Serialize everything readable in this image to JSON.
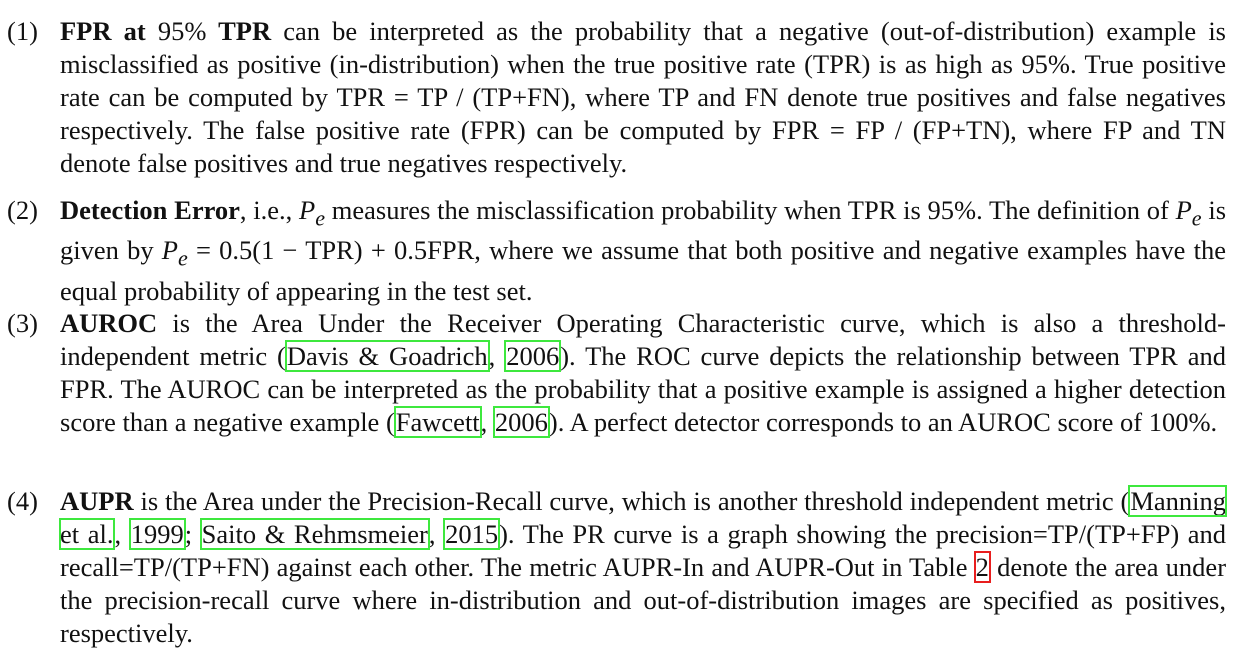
{
  "items": [
    {
      "number": "(1)",
      "title_a": "FPR at",
      "title_num": "95%",
      "title_b": "TPR",
      "body": "can be interpreted as the probability that a negative (out-of-distribution) example is misclassified as positive (in-distribution) when the true positive rate (TPR) is as high as 95%. True positive rate can be computed by TPR = TP / (TP+FN), where TP and FN denote true positives and false negatives respectively. The false positive rate (FPR) can be computed by FPR = FP / (FP+TN), where FP and TN denote false positives and true negatives respectively."
    },
    {
      "number": "(2)",
      "title": "Detection Error",
      "t1": ", i.e.,",
      "pe_p": "P",
      "pe_e": "e",
      "t2": "measures the misclassification probability when TPR is 95%.  The definition of",
      "t3": "is given by",
      "formula": "= 0.5(1 − TPR) + 0.5FPR",
      "t4": ", where we assume that both positive and negative examples have the equal probability of appearing in the test set."
    },
    {
      "number": "(3)",
      "title": "AUROC",
      "t1": "is the Area Under the Receiver Operating Characteristic curve, which is also a threshold-independent metric (",
      "cite1_author": "Davis & Goadrich",
      "cite1_year": "2006",
      "t2": "). The ROC curve depicts the relationship between TPR and FPR. The AUROC can be interpreted as the probability that a positive example is assigned a higher detection score than a negative example (",
      "cite2_author": "Fawcett",
      "cite2_year": "2006",
      "t3": "). A perfect detector corresponds to an AUROC score of",
      "pct": "100%",
      "t4": "."
    },
    {
      "number": "(4)",
      "title": "AUPR",
      "t1": "is the Area under the Precision-Recall curve, which is another threshold independent metric (",
      "cite1_author": "Manning et al.",
      "cite1_year": "1999",
      "sep": "; ",
      "cite2_author": "Saito & Rehmsmeier",
      "cite2_year": "2015",
      "t2": ").  The PR curve is a graph showing the precision=TP/(TP+FP) and recall=TP/(TP+FN) against each other. The metric AUPR-In and AUPR-Out in Table",
      "table_ref": "2",
      "t3": "denote the area under the precision-recall curve where in-distribution and out-of-distribution images are specified as positives, respectively."
    }
  ],
  "comma": ", "
}
